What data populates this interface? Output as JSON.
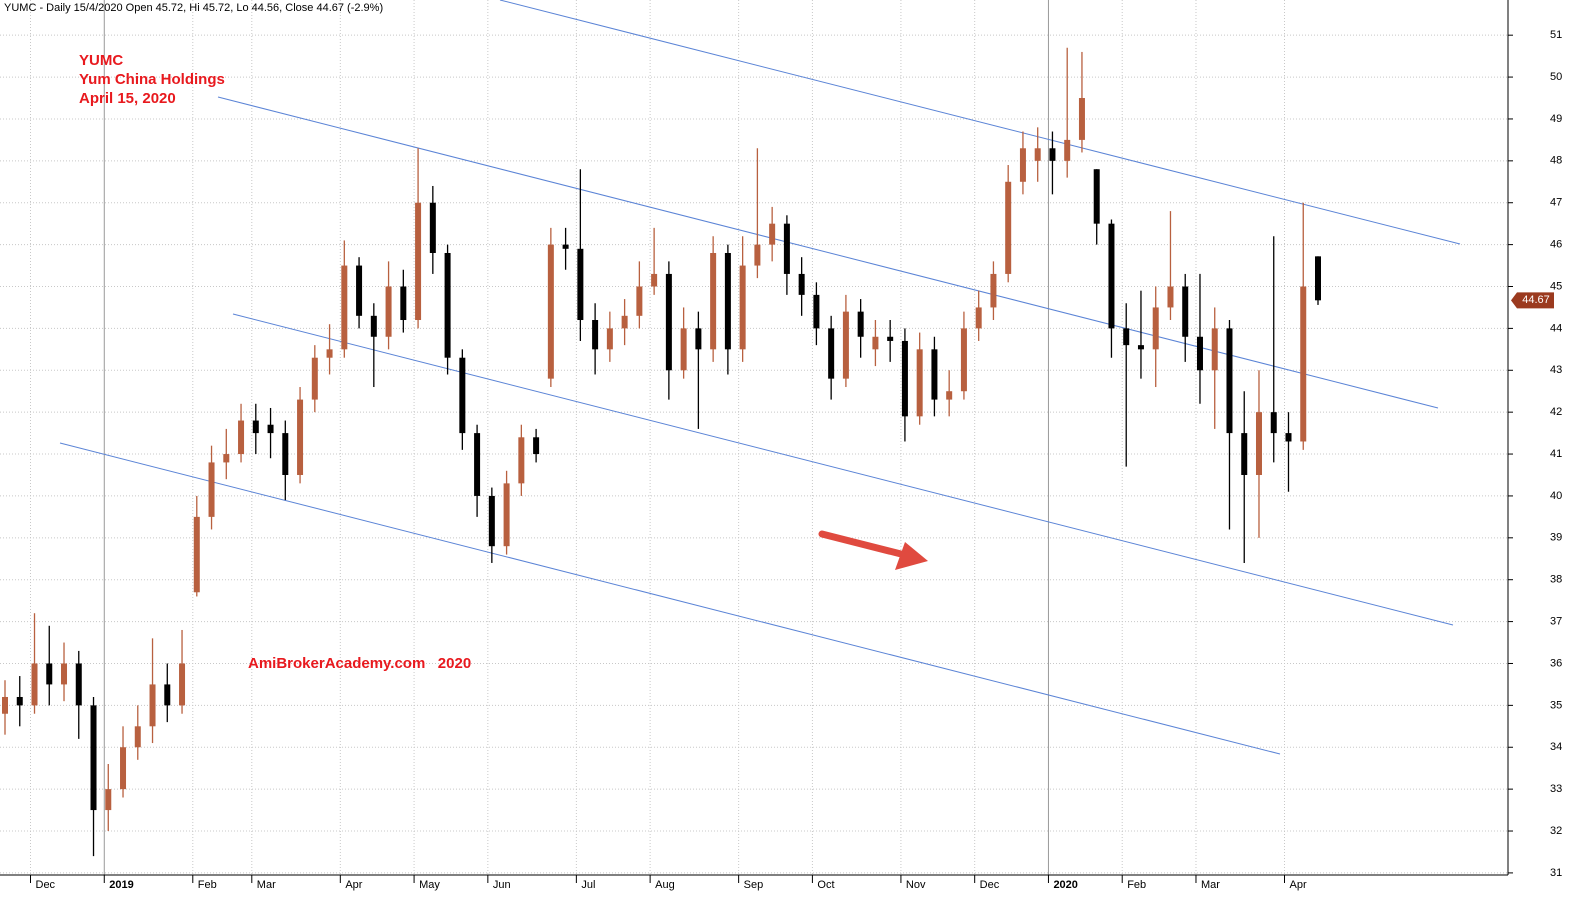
{
  "chart_data": {
    "type": "candlestick",
    "title": "YUMC - Daily 15/4/2020 Open 45.72, Hi 45.72, Lo 44.56, Close 44.67 (-2.9%)",
    "annotations": [
      "YUMC",
      "Yum China Holdings",
      "April 15, 2020",
      "AmiBrokerAcademy.com   2020"
    ],
    "categories": [
      null,
      null,
      "Dec",
      null,
      null,
      null,
      null,
      "2019",
      null,
      null,
      null,
      null,
      null,
      "Feb",
      null,
      null,
      null,
      "Mar",
      null,
      null,
      null,
      null,
      null,
      "Apr",
      null,
      null,
      null,
      null,
      "May",
      null,
      null,
      null,
      null,
      "Jun",
      null,
      null,
      null,
      null,
      null,
      "Jul",
      null,
      null,
      null,
      null,
      "Aug",
      null,
      null,
      null,
      null,
      null,
      "Sep",
      null,
      null,
      null,
      null,
      "Oct",
      null,
      null,
      null,
      null,
      null,
      "Nov",
      null,
      null,
      null,
      null,
      "Dec",
      null,
      null,
      null,
      null,
      "2020",
      null,
      null,
      null,
      null,
      "Feb",
      null,
      null,
      null,
      null,
      "Mar",
      null,
      null,
      null,
      null,
      null,
      "Apr",
      null,
      null
    ],
    "open": [
      34.8,
      35.2,
      35.0,
      36.0,
      35.5,
      36.0,
      35.0,
      32.5,
      33.0,
      34.0,
      34.5,
      35.5,
      35.0,
      37.7,
      39.5,
      40.8,
      41.0,
      41.8,
      41.7,
      41.5,
      40.5,
      42.3,
      43.3,
      43.5,
      45.5,
      44.3,
      43.8,
      45.0,
      44.2,
      47.0,
      45.8,
      43.3,
      41.5,
      40.0,
      38.8,
      40.3,
      41.4,
      42.8,
      46.0,
      45.9,
      44.2,
      43.5,
      44.0,
      44.3,
      45.0,
      45.3,
      43.0,
      44.0,
      43.5,
      45.8,
      43.5,
      45.5,
      46.0,
      46.5,
      45.3,
      44.8,
      44.0,
      42.8,
      44.4,
      43.5,
      43.8,
      43.7,
      41.9,
      43.5,
      42.3,
      42.5,
      44.0,
      44.5,
      45.3,
      47.5,
      48.0,
      48.3,
      48.0,
      48.5,
      47.8,
      46.5,
      44.0,
      43.6,
      43.5,
      44.5,
      45.0,
      43.8,
      43.0,
      44.0,
      41.5,
      40.5,
      42.0,
      41.5,
      41.3,
      45.72
    ],
    "high": [
      35.6,
      35.7,
      37.2,
      36.9,
      36.5,
      36.3,
      35.2,
      33.6,
      34.5,
      35.0,
      36.6,
      36.0,
      36.8,
      40.0,
      41.2,
      41.6,
      42.2,
      42.2,
      42.1,
      41.8,
      42.6,
      43.6,
      44.1,
      46.1,
      45.7,
      44.6,
      45.6,
      45.4,
      48.3,
      47.4,
      46.0,
      43.5,
      41.7,
      40.2,
      40.6,
      41.7,
      41.6,
      46.4,
      46.4,
      47.8,
      44.6,
      44.4,
      44.7,
      45.6,
      46.4,
      45.6,
      44.5,
      44.4,
      46.2,
      46.0,
      46.2,
      48.3,
      46.9,
      46.7,
      45.7,
      45.1,
      44.3,
      44.8,
      44.7,
      44.2,
      44.2,
      44.0,
      43.9,
      43.8,
      43.0,
      44.4,
      44.9,
      45.6,
      47.9,
      48.7,
      48.8,
      48.7,
      50.7,
      50.6,
      47.8,
      46.6,
      44.6,
      44.9,
      45.0,
      46.8,
      45.3,
      45.3,
      44.5,
      44.2,
      42.5,
      43.0,
      46.2,
      42.0,
      47.0,
      45.72
    ],
    "low": [
      34.3,
      34.5,
      34.8,
      35.0,
      35.1,
      34.2,
      31.4,
      32.0,
      32.8,
      33.7,
      34.1,
      34.6,
      34.8,
      37.6,
      39.2,
      40.4,
      40.8,
      41.0,
      40.9,
      39.9,
      40.3,
      42.0,
      42.9,
      43.3,
      44.0,
      42.6,
      43.5,
      43.9,
      44.0,
      45.3,
      42.9,
      41.1,
      39.5,
      38.4,
      38.6,
      40.0,
      40.8,
      42.6,
      45.4,
      43.7,
      42.9,
      43.2,
      43.6,
      44.0,
      44.8,
      42.3,
      42.8,
      41.6,
      43.2,
      42.9,
      43.2,
      45.2,
      45.6,
      44.8,
      44.3,
      43.6,
      42.3,
      42.6,
      43.3,
      43.1,
      43.2,
      41.3,
      41.7,
      41.9,
      41.9,
      42.3,
      43.7,
      44.2,
      45.1,
      47.2,
      47.5,
      47.2,
      47.6,
      48.2,
      46.0,
      43.3,
      40.7,
      42.8,
      42.6,
      44.2,
      43.2,
      42.2,
      41.6,
      39.2,
      38.4,
      39.0,
      40.8,
      40.1,
      41.1,
      44.56
    ],
    "close": [
      35.2,
      35.0,
      36.0,
      35.5,
      36.0,
      35.0,
      32.5,
      33.0,
      34.0,
      34.5,
      35.5,
      35.0,
      36.0,
      39.5,
      40.8,
      41.0,
      41.8,
      41.5,
      41.5,
      40.5,
      42.3,
      43.3,
      43.5,
      45.5,
      44.3,
      43.8,
      45.0,
      44.2,
      47.0,
      45.8,
      43.3,
      41.5,
      40.0,
      38.8,
      40.3,
      41.4,
      41.0,
      46.0,
      45.9,
      44.2,
      43.5,
      44.0,
      44.3,
      45.0,
      45.3,
      43.0,
      44.0,
      43.5,
      45.8,
      43.5,
      45.5,
      46.0,
      46.5,
      45.3,
      44.8,
      44.0,
      42.8,
      44.4,
      43.8,
      43.8,
      43.7,
      41.9,
      43.5,
      42.3,
      42.5,
      44.0,
      44.5,
      45.3,
      47.5,
      48.3,
      48.3,
      48.0,
      48.5,
      49.5,
      46.5,
      44.0,
      43.6,
      43.5,
      44.5,
      45.0,
      43.8,
      43.0,
      44.0,
      41.5,
      40.5,
      42.0,
      41.5,
      41.3,
      45.0,
      44.67
    ],
    "up_color": "#b8603f",
    "down_color": "#000000",
    "last_price": 44.67,
    "last_price_color": "#9b3a1f",
    "ylim": [
      30.95,
      51.84
    ],
    "yticks": [
      31,
      32,
      33,
      34,
      35,
      36,
      37,
      38,
      39,
      40,
      41,
      42,
      43,
      44,
      45,
      46,
      47,
      48,
      49,
      50,
      51
    ],
    "grid": true
  }
}
